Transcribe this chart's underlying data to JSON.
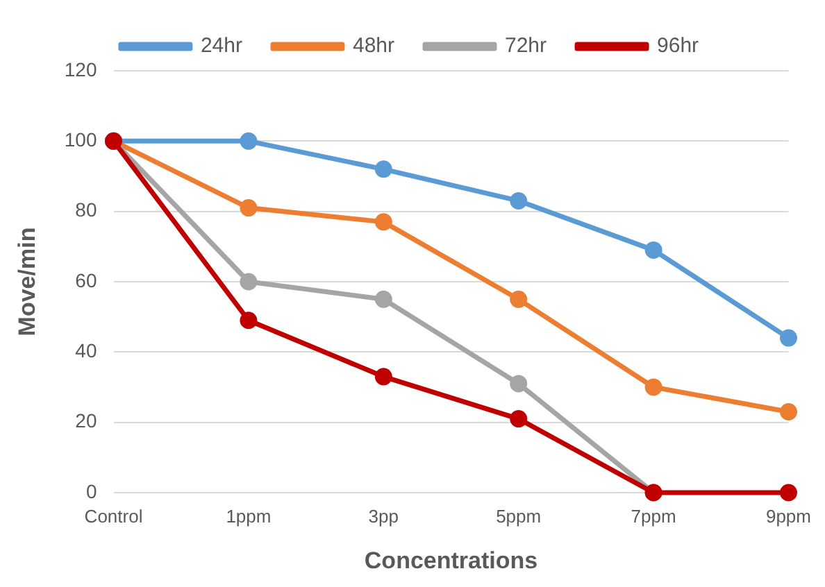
{
  "chart_data": {
    "type": "line",
    "xlabel": "Concentrations",
    "ylabel": "Move/min",
    "categories": [
      "Control",
      "1ppm",
      "3pp",
      "5ppm",
      "7ppm",
      "9ppm"
    ],
    "series": [
      {
        "name": "24hr",
        "color": "#5b9bd5",
        "values": [
          100,
          100,
          92,
          83,
          69,
          44
        ]
      },
      {
        "name": "48hr",
        "color": "#ed7d31",
        "values": [
          100,
          81,
          77,
          55,
          30,
          23
        ]
      },
      {
        "name": "72hr",
        "color": "#a5a5a5",
        "values": [
          100,
          60,
          55,
          31,
          0,
          null
        ]
      },
      {
        "name": "96hr",
        "color": "#c00000",
        "values": [
          100,
          49,
          33,
          21,
          0,
          0
        ]
      }
    ],
    "ylim": [
      0,
      120
    ],
    "yticks": [
      0,
      20,
      40,
      60,
      80,
      100,
      120
    ],
    "grid": "y",
    "legend": "top",
    "marker": "circle",
    "line_style": "solid"
  }
}
